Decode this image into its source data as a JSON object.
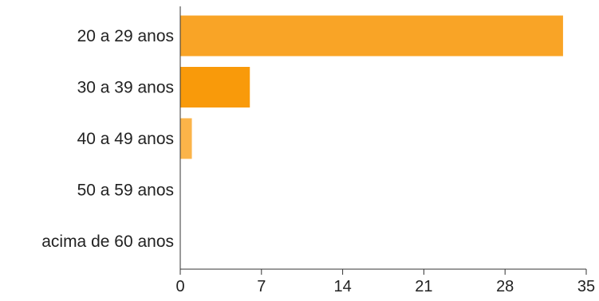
{
  "chart_data": {
    "type": "bar",
    "orientation": "horizontal",
    "categories": [
      "20 a 29 anos",
      "30 a 39 anos",
      "40 a 49 anos",
      "50 a 59 anos",
      "acima de 60 anos"
    ],
    "values": [
      33,
      6,
      1,
      0,
      0
    ],
    "bar_colors": [
      "#f9a426",
      "#f99a0a",
      "#fbb449",
      "#fbb449",
      "#fbb449"
    ],
    "xticks": [
      0,
      7,
      14,
      21,
      28,
      35
    ],
    "xlim": [
      0,
      35
    ],
    "grid": false,
    "legend": "none"
  }
}
